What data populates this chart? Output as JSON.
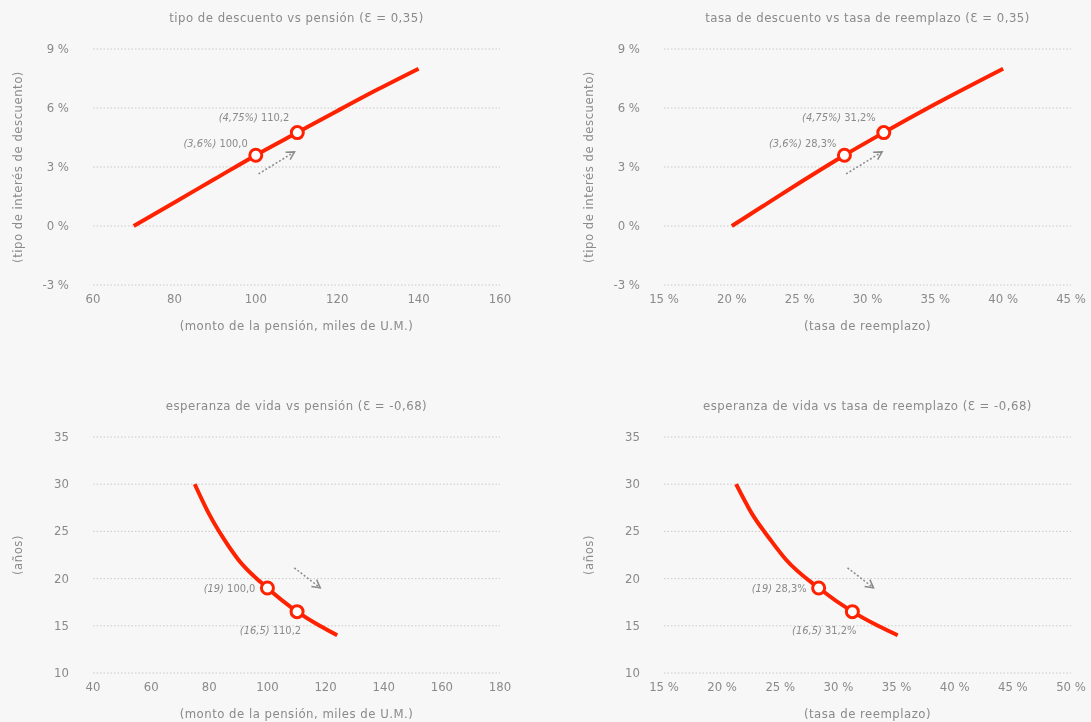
{
  "chart_data": [
    {
      "type": "line",
      "title": "tipo de descuento vs pensión (Ɛ = 0,35)",
      "xlabel": "(monto de la pensión, miles de U.M.)",
      "ylabel": "(tipo de interés de descuento)",
      "xlim": [
        60,
        160
      ],
      "xticks": [
        60,
        80,
        100,
        120,
        140,
        160
      ],
      "ylim": [
        -3,
        9
      ],
      "yticks": [
        {
          "value": -3,
          "label": "-3 %"
        },
        {
          "value": 0,
          "label": "0 %"
        },
        {
          "value": 3,
          "label": "3 %"
        },
        {
          "value": 6,
          "label": "6 %"
        },
        {
          "value": 9,
          "label": "9 %"
        }
      ],
      "grid": "y",
      "legend": false,
      "series": [
        {
          "color": "#ff2200",
          "x": [
            70,
            80,
            90,
            100,
            110.2,
            120,
            130,
            140
          ],
          "values": [
            0,
            1.2,
            2.4,
            3.6,
            4.75,
            5.85,
            6.95,
            8
          ]
        },
        {
          "type": "scatter",
          "marker": "circle",
          "color": "#ff2200",
          "x": [
            100,
            110.2
          ],
          "values": [
            3.6,
            4.75
          ]
        }
      ],
      "annotations": [
        {
          "text": "(3,6%) 100,0",
          "x": 100,
          "y": 3.6
        },
        {
          "text": "(4,75%) 110,2",
          "x": 110.2,
          "y": 4.75
        }
      ]
    },
    {
      "type": "line",
      "title": "tasa de descuento vs tasa de reemplazo (Ɛ = 0,35)",
      "xlabel": "(tasa de reemplazo)",
      "ylabel": "(tipo de interés de descuento)",
      "xlim": [
        15,
        45
      ],
      "xticks": [
        {
          "value": 15,
          "label": "15 %"
        },
        {
          "value": 20,
          "label": "20 %"
        },
        {
          "value": 25,
          "label": "25 %"
        },
        {
          "value": 30,
          "label": "30 %"
        },
        {
          "value": 35,
          "label": "35 %"
        },
        {
          "value": 40,
          "label": "40 %"
        },
        {
          "value": 45,
          "label": "45 %"
        }
      ],
      "ylim": [
        -3,
        9
      ],
      "yticks": [
        {
          "value": -3,
          "label": "-3 %"
        },
        {
          "value": 0,
          "label": "0 %"
        },
        {
          "value": 3,
          "label": "3 %"
        },
        {
          "value": 6,
          "label": "6 %"
        },
        {
          "value": 9,
          "label": "9 %"
        }
      ],
      "grid": "y",
      "legend": false,
      "series": [
        {
          "color": "#ff2200",
          "x": [
            20,
            22.5,
            25,
            28.3,
            31.2,
            35,
            40
          ],
          "values": [
            0,
            1.1,
            2.2,
            3.6,
            4.75,
            6.2,
            8
          ]
        },
        {
          "type": "scatter",
          "marker": "circle",
          "color": "#ff2200",
          "x": [
            28.3,
            31.2
          ],
          "values": [
            3.6,
            4.75
          ]
        }
      ],
      "annotations": [
        {
          "text": "(3,6%) 28,3%",
          "x": 28.3,
          "y": 3.6
        },
        {
          "text": "(4,75%) 31,2%",
          "x": 31.2,
          "y": 4.75
        }
      ]
    },
    {
      "type": "line",
      "title": "esperanza de vida vs pensión (Ɛ = -0,68)",
      "xlabel": "(monto de la pensión, miles de U.M.)",
      "ylabel": "(años)",
      "xlim": [
        40,
        180
      ],
      "xticks": [
        40,
        60,
        80,
        100,
        120,
        140,
        160,
        180
      ],
      "ylim": [
        10,
        35
      ],
      "yticks": [
        10,
        15,
        20,
        25,
        30,
        35
      ],
      "grid": "y",
      "legend": false,
      "series": [
        {
          "color": "#ff2200",
          "x": [
            75,
            80,
            85,
            90,
            100,
            110.2,
            118,
            124
          ],
          "values": [
            30,
            26.8,
            24.2,
            22,
            19,
            16.5,
            15,
            14
          ]
        },
        {
          "type": "scatter",
          "marker": "circle",
          "color": "#ff2200",
          "x": [
            100,
            110.2
          ],
          "values": [
            19,
            16.5
          ]
        }
      ],
      "annotations": [
        {
          "text": "(19) 100,0",
          "x": 100,
          "y": 19
        },
        {
          "text": "(16,5) 110,2",
          "x": 110.2,
          "y": 16.5
        }
      ]
    },
    {
      "type": "line",
      "title": "esperanza de vida vs tasa de reemplazo (Ɛ = -0,68)",
      "xlabel": "(tasa de reemplazo)",
      "ylabel": "(años)",
      "xlim": [
        15,
        50
      ],
      "xticks": [
        {
          "value": 15,
          "label": "15 %"
        },
        {
          "value": 20,
          "label": "20 %"
        },
        {
          "value": 25,
          "label": "25 %"
        },
        {
          "value": 30,
          "label": "30 %"
        },
        {
          "value": 35,
          "label": "35 %"
        },
        {
          "value": 40,
          "label": "40 %"
        },
        {
          "value": 45,
          "label": "45 %"
        },
        {
          "value": 50,
          "label": "50 %"
        }
      ],
      "ylim": [
        10,
        35
      ],
      "yticks": [
        10,
        15,
        20,
        25,
        30,
        35
      ],
      "grid": "y",
      "legend": false,
      "series": [
        {
          "color": "#ff2200",
          "x": [
            21.2,
            22.6,
            24.1,
            25.5,
            28.3,
            31.2,
            33.4,
            35.1
          ],
          "values": [
            30,
            26.8,
            24.2,
            22,
            19,
            16.5,
            15,
            14
          ]
        },
        {
          "type": "scatter",
          "marker": "circle",
          "color": "#ff2200",
          "x": [
            28.3,
            31.2
          ],
          "values": [
            19,
            16.5
          ]
        }
      ],
      "annotations": [
        {
          "text": "(19) 28,3%",
          "x": 28.3,
          "y": 19
        },
        {
          "text": "(16,5) 31,2%",
          "x": 31.2,
          "y": 16.5
        }
      ]
    }
  ]
}
